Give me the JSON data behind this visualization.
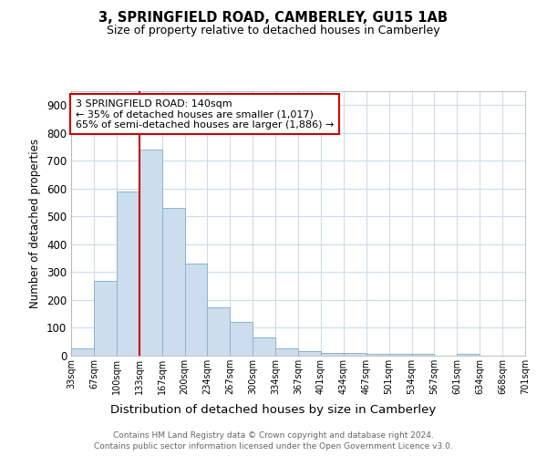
{
  "title": "3, SPRINGFIELD ROAD, CAMBERLEY, GU15 1AB",
  "subtitle": "Size of property relative to detached houses in Camberley",
  "xlabel": "Distribution of detached houses by size in Camberley",
  "ylabel": "Number of detached properties",
  "footer1": "Contains HM Land Registry data © Crown copyright and database right 2024.",
  "footer2": "Contains public sector information licensed under the Open Government Licence v3.0.",
  "bar_values": [
    25,
    270,
    590,
    740,
    530,
    330,
    175,
    120,
    65,
    25,
    15,
    10,
    10,
    5,
    5,
    8,
    0,
    8,
    0,
    0
  ],
  "bar_labels": [
    "33sqm",
    "67sqm",
    "100sqm",
    "133sqm",
    "167sqm",
    "200sqm",
    "234sqm",
    "267sqm",
    "300sqm",
    "334sqm",
    "367sqm",
    "401sqm",
    "434sqm",
    "467sqm",
    "501sqm",
    "534sqm",
    "567sqm",
    "601sqm",
    "634sqm",
    "668sqm",
    "701sqm"
  ],
  "bar_color": "#ccdded",
  "bar_edge_color": "#8ab4cc",
  "red_line_bar_index": 3,
  "annotation_text": "3 SPRINGFIELD ROAD: 140sqm\n← 35% of detached houses are smaller (1,017)\n65% of semi-detached houses are larger (1,886) →",
  "annotation_box_color": "#cc0000",
  "ylim": [
    0,
    950
  ],
  "yticks": [
    0,
    100,
    200,
    300,
    400,
    500,
    600,
    700,
    800,
    900
  ],
  "bg_color": "#ffffff",
  "grid_color": "#ccdde8"
}
